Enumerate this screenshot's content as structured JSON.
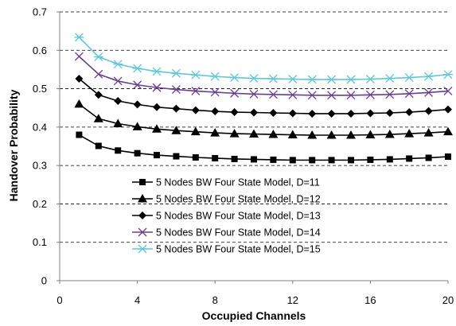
{
  "chart_data": {
    "type": "line",
    "title": "",
    "xlabel": "Occupied Channels",
    "ylabel": "Handover Probability",
    "xlim": [
      0,
      20
    ],
    "ylim": [
      0,
      0.7
    ],
    "xticks": [
      0,
      4,
      8,
      12,
      16,
      20
    ],
    "xtick_labels": [
      "0",
      "4",
      "8",
      "12",
      "16",
      "20"
    ],
    "yticks": [
      0,
      0.1,
      0.2,
      0.3,
      0.4,
      0.5,
      0.6,
      0.7
    ],
    "ytick_labels": [
      "0",
      "0.1",
      "0.2",
      "0.3",
      "0.4",
      "0.5",
      "0.6",
      "0.7"
    ],
    "grid": "horizontal dashed",
    "legend_position": "lower-center",
    "x": [
      1,
      2,
      3,
      4,
      5,
      6,
      7,
      8,
      9,
      10,
      11,
      12,
      13,
      14,
      15,
      16,
      17,
      18,
      19,
      20
    ],
    "series": [
      {
        "name": "5 Nodes BW Four State Model, D=11",
        "marker": "square",
        "values": [
          0.38,
          0.351,
          0.339,
          0.332,
          0.327,
          0.324,
          0.321,
          0.319,
          0.317,
          0.316,
          0.315,
          0.314,
          0.314,
          0.314,
          0.314,
          0.315,
          0.316,
          0.318,
          0.32,
          0.323
        ]
      },
      {
        "name": "5 Nodes BW Four State Model, D=12",
        "marker": "triangle",
        "values": [
          0.46,
          0.422,
          0.409,
          0.401,
          0.395,
          0.391,
          0.388,
          0.385,
          0.383,
          0.382,
          0.381,
          0.38,
          0.379,
          0.379,
          0.379,
          0.38,
          0.381,
          0.383,
          0.385,
          0.388
        ]
      },
      {
        "name": "5 Nodes BW Four State Model, D=13",
        "marker": "diamond",
        "values": [
          0.526,
          0.484,
          0.468,
          0.459,
          0.452,
          0.448,
          0.444,
          0.441,
          0.439,
          0.438,
          0.437,
          0.436,
          0.435,
          0.435,
          0.435,
          0.436,
          0.437,
          0.439,
          0.442,
          0.446
        ]
      },
      {
        "name": "5 Nodes BW Four State Model, D=14",
        "marker": "x",
        "values": [
          0.584,
          0.538,
          0.52,
          0.51,
          0.503,
          0.498,
          0.494,
          0.491,
          0.488,
          0.486,
          0.485,
          0.484,
          0.483,
          0.483,
          0.483,
          0.484,
          0.485,
          0.487,
          0.49,
          0.494
        ]
      },
      {
        "name": "5 Nodes BW Four State Model, D=15",
        "marker": "asterisk",
        "values": [
          0.634,
          0.583,
          0.564,
          0.553,
          0.545,
          0.54,
          0.536,
          0.532,
          0.529,
          0.527,
          0.526,
          0.525,
          0.524,
          0.524,
          0.524,
          0.525,
          0.527,
          0.529,
          0.532,
          0.537
        ]
      }
    ]
  },
  "colors": {
    "D11": "#000000",
    "D12": "#000000",
    "D13": "#000000",
    "D14": "#6a3d9a",
    "D15": "#5bc8dc",
    "grid": "#000000",
    "axis": "#808080"
  }
}
